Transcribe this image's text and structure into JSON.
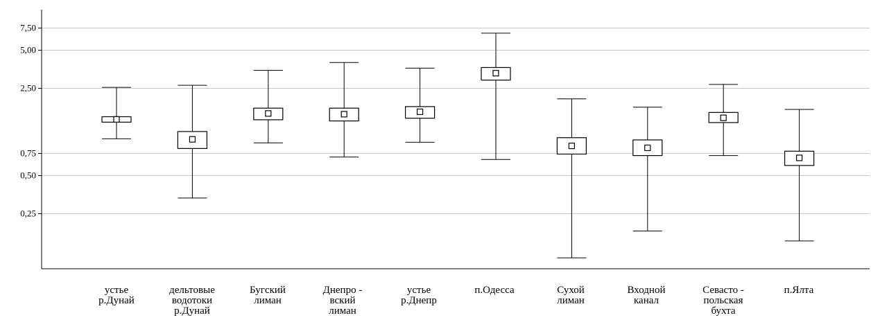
{
  "chart_data": {
    "type": "box",
    "categories": [
      "устье\nр.Дунай",
      "дельтовые\nводотоки\nр.Дунай",
      "Бугский\nлиман",
      "Днепро -\nвский\nлиман",
      "устье\nр.Днепр",
      "п.Одесса",
      "Сухой\nлиман",
      "Входной\nканал",
      "Севасто -\nпольская\nбухта",
      "п.Ялта"
    ],
    "yscale": "log",
    "ylim": [
      0.09,
      10.5
    ],
    "yticks": [
      0.25,
      0.5,
      0.75,
      2.5,
      5.0,
      7.5
    ],
    "ytick_labels": [
      "0,25",
      "0,50",
      "0,75",
      "2,50",
      "5,00",
      "7,50"
    ],
    "grid": true,
    "series": [
      {
        "mean": [
          1.4,
          0.97,
          1.56,
          1.54,
          1.61,
          3.27,
          0.86,
          0.83,
          1.44,
          0.69
        ],
        "box_low": [
          1.33,
          0.82,
          1.39,
          1.36,
          1.43,
          2.88,
          0.74,
          0.72,
          1.32,
          0.6
        ],
        "box_high": [
          1.47,
          1.12,
          1.72,
          1.72,
          1.77,
          3.63,
          1.0,
          0.96,
          1.59,
          0.78
        ],
        "whisker_low": [
          0.98,
          0.33,
          0.91,
          0.7,
          0.92,
          0.67,
          0.11,
          0.18,
          0.72,
          0.15
        ],
        "whisker_high": [
          2.52,
          2.62,
          3.45,
          3.98,
          3.59,
          6.82,
          2.04,
          1.75,
          2.66,
          1.68
        ]
      }
    ]
  }
}
